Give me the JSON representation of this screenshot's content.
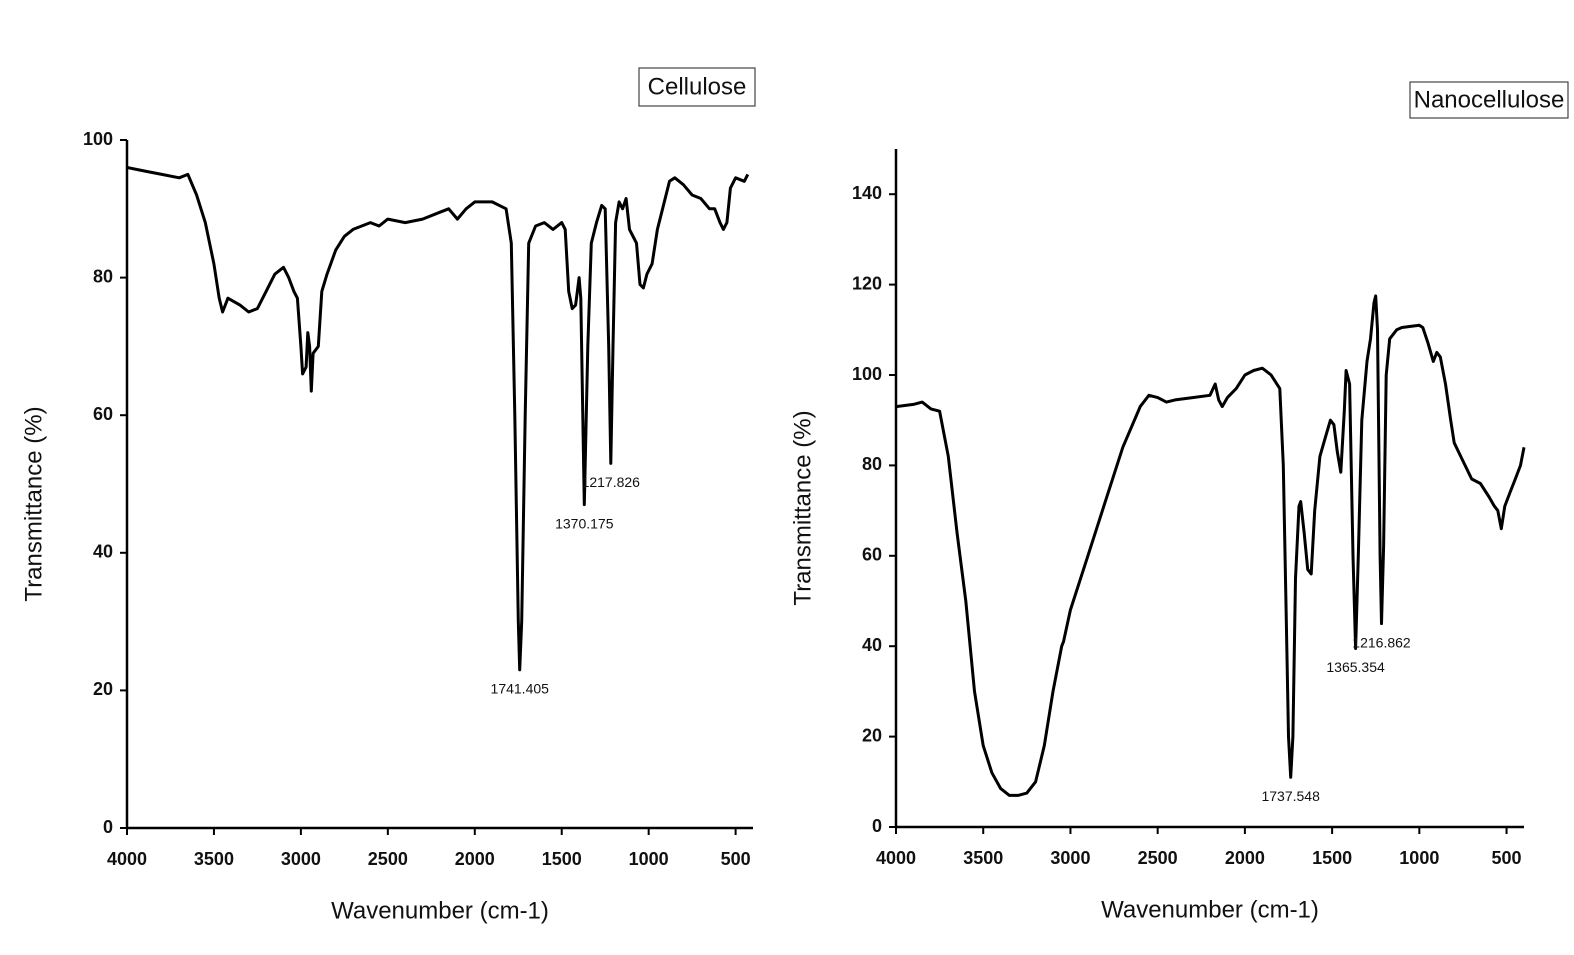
{
  "chart_data": [
    {
      "type": "line",
      "xlabel": "Wavenumber (cm-1)",
      "ylabel": "Transmittance (%)",
      "legend": "top-right",
      "xlim": [
        4000,
        400
      ],
      "xticks": [
        4000,
        3500,
        3000,
        2500,
        2000,
        1500,
        1000,
        500
      ],
      "ylim": [
        0,
        100
      ],
      "yticks": [
        0,
        20,
        40,
        60,
        80,
        100
      ],
      "x": [
        4000,
        3900,
        3800,
        3700,
        3650,
        3600,
        3550,
        3500,
        3470,
        3450,
        3420,
        3350,
        3300,
        3250,
        3200,
        3150,
        3100,
        3070,
        3040,
        3020,
        3000,
        2990,
        2970,
        2960,
        2950,
        2940,
        2930,
        2900,
        2880,
        2850,
        2800,
        2750,
        2700,
        2600,
        2550,
        2500,
        2400,
        2300,
        2200,
        2150,
        2100,
        2050,
        2000,
        1900,
        1820,
        1790,
        1770,
        1750,
        1741.405,
        1730,
        1710,
        1690,
        1650,
        1600,
        1550,
        1500,
        1480,
        1460,
        1440,
        1420,
        1400,
        1390,
        1370.175,
        1350,
        1330,
        1300,
        1270,
        1250,
        1230,
        1217.826,
        1205,
        1190,
        1170,
        1150,
        1130,
        1110,
        1090,
        1070,
        1050,
        1030,
        1010,
        980,
        950,
        920,
        880,
        850,
        800,
        750,
        700,
        650,
        620,
        590,
        570,
        550,
        530,
        500,
        450,
        430
      ],
      "series": [
        {
          "name": "Cellulose",
          "color": "#000000",
          "values": [
            96,
            95.5,
            95,
            94.5,
            95,
            92,
            88,
            82,
            77,
            75,
            77,
            76,
            75,
            75.5,
            78,
            80.5,
            81.5,
            80,
            78,
            77,
            70,
            66,
            67,
            72,
            70,
            63.5,
            69,
            70,
            78,
            80.5,
            84,
            86,
            87,
            88,
            87.5,
            88.5,
            88,
            88.5,
            89.5,
            90,
            88.5,
            90,
            91,
            91,
            90,
            85,
            60,
            30,
            23,
            30,
            60,
            85,
            87.5,
            88,
            87,
            88,
            87,
            78,
            75.5,
            76,
            80,
            77,
            47,
            70,
            85,
            88,
            90.5,
            90,
            70,
            53,
            70,
            88,
            91,
            90,
            91.5,
            87,
            86,
            85,
            79,
            78.5,
            80.5,
            82,
            87,
            90,
            94,
            94.5,
            93.5,
            92,
            91.5,
            90,
            90,
            88,
            87,
            88,
            93,
            94.5,
            94,
            95
          ]
        }
      ],
      "annotations": [
        {
          "label": "1741.405",
          "x": 1741.405,
          "y": 23
        },
        {
          "label": "1370.175",
          "x": 1370.175,
          "y": 47
        },
        {
          "label": "1217.826",
          "x": 1217.826,
          "y": 53
        }
      ]
    },
    {
      "type": "line",
      "xlabel": "Wavenumber (cm-1)",
      "ylabel": "Transmittance (%)",
      "legend": "top-right",
      "xlim": [
        4000,
        400
      ],
      "xticks": [
        4000,
        3500,
        3000,
        2500,
        2000,
        1500,
        1000,
        500
      ],
      "ylim": [
        0,
        150
      ],
      "yticks": [
        0,
        20,
        40,
        60,
        80,
        100,
        120,
        140
      ],
      "x": [
        4000,
        3900,
        3850,
        3800,
        3750,
        3700,
        3650,
        3600,
        3550,
        3500,
        3450,
        3400,
        3350,
        3300,
        3250,
        3200,
        3150,
        3100,
        3050,
        3040,
        3000,
        2900,
        2800,
        2700,
        2600,
        2550,
        2500,
        2450,
        2400,
        2300,
        2200,
        2170,
        2150,
        2130,
        2100,
        2050,
        2000,
        1950,
        1900,
        1850,
        1800,
        1780,
        1760,
        1750,
        1737.548,
        1725,
        1710,
        1690,
        1680,
        1660,
        1640,
        1620,
        1600,
        1570,
        1540,
        1510,
        1490,
        1470,
        1450,
        1430,
        1420,
        1400,
        1380,
        1365.354,
        1350,
        1330,
        1300,
        1280,
        1260,
        1250,
        1240,
        1225,
        1216.862,
        1205,
        1190,
        1170,
        1130,
        1100,
        1000,
        980,
        950,
        920,
        900,
        880,
        850,
        820,
        800,
        750,
        700,
        650,
        600,
        570,
        550,
        530,
        510,
        480,
        450,
        420,
        400
      ],
      "series": [
        {
          "name": "Nanocellulose",
          "color": "#000000",
          "values": [
            93,
            93.5,
            94,
            92.5,
            92,
            82,
            65,
            50,
            30,
            18,
            12,
            8.5,
            7,
            7,
            7.5,
            10,
            18,
            30,
            40,
            41,
            48,
            60,
            72,
            84,
            93,
            95.5,
            95,
            94,
            94.5,
            95,
            95.5,
            98,
            94.5,
            93,
            95,
            97,
            100,
            101,
            101.5,
            100,
            97,
            80,
            40,
            20,
            11,
            20,
            55,
            71,
            72,
            65,
            57,
            56,
            70,
            82,
            86,
            90,
            89,
            83,
            78.5,
            92,
            101,
            98,
            60,
            39.5,
            60,
            90,
            103,
            108,
            116,
            117.5,
            110,
            60,
            45,
            62,
            100,
            108,
            110,
            110.5,
            111,
            110.5,
            107,
            103,
            105,
            104,
            98,
            90,
            85,
            81,
            77,
            76,
            73,
            71,
            70,
            66,
            71,
            74,
            77,
            80,
            84
          ]
        }
      ],
      "annotations": [
        {
          "label": "1737.548",
          "x": 1737.548,
          "y": 11
        },
        {
          "label": "1365.354",
          "x": 1365.354,
          "y": 39.5
        },
        {
          "label": "1216.862",
          "x": 1216.862,
          "y": 45
        }
      ]
    }
  ]
}
